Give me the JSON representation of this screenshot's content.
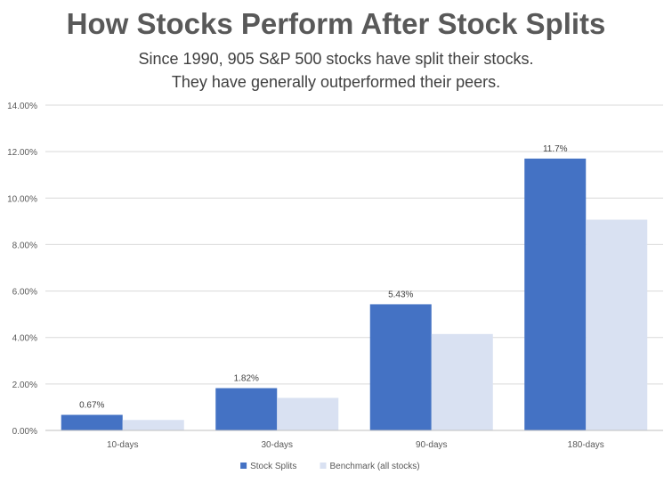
{
  "chart_data": {
    "type": "bar",
    "title": "How Stocks Perform After Stock Splits",
    "subtitle_lines": [
      "Since 1990, 905 S&P 500 stocks have split their stocks.",
      "They have generally outperformed their peers."
    ],
    "categories": [
      "10-days",
      "30-days",
      "90-days",
      "180-days"
    ],
    "series": [
      {
        "name": "Stock Splits",
        "values": [
          0.67,
          1.82,
          5.43,
          11.7
        ],
        "labels": [
          "0.67%",
          "1.82%",
          "5.43%",
          "11.7%"
        ],
        "color": "#4472C4"
      },
      {
        "name": "Benchmark (all stocks)",
        "values": [
          0.45,
          1.4,
          4.15,
          9.07
        ],
        "color": "#D9E1F2"
      }
    ],
    "y_ticks": [
      "0.00%",
      "2.00%",
      "4.00%",
      "6.00%",
      "8.00%",
      "10.00%",
      "12.00%",
      "14.00%"
    ],
    "ylim": [
      0,
      14
    ],
    "grid": true,
    "legend_position": "bottom"
  }
}
